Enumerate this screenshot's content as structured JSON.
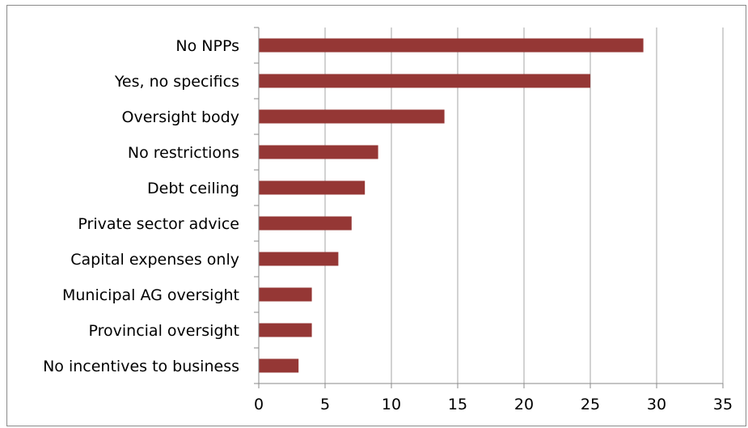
{
  "chart_data": {
    "type": "bar",
    "orientation": "horizontal",
    "categories": [
      "No NPPs",
      "Yes, no specifics",
      "Oversight body",
      "No restrictions",
      "Debt ceiling",
      "Private sector advice",
      "Capital expenses only",
      "Municipal AG oversight",
      "Provincial oversight",
      "No incentives to business"
    ],
    "values": [
      29,
      25,
      14,
      9,
      8,
      7,
      6,
      4,
      4,
      3
    ],
    "xlim": [
      0,
      35
    ],
    "xticks": [
      0,
      5,
      10,
      15,
      20,
      25,
      30,
      35
    ],
    "grid": "vertical",
    "legend": "none",
    "title": "",
    "xlabel": "",
    "ylabel": "",
    "colors": {
      "bar": "#953735",
      "grid": "#a6a6a6",
      "axis": "#8a8a8a",
      "frame": "#8a8a8a"
    }
  }
}
